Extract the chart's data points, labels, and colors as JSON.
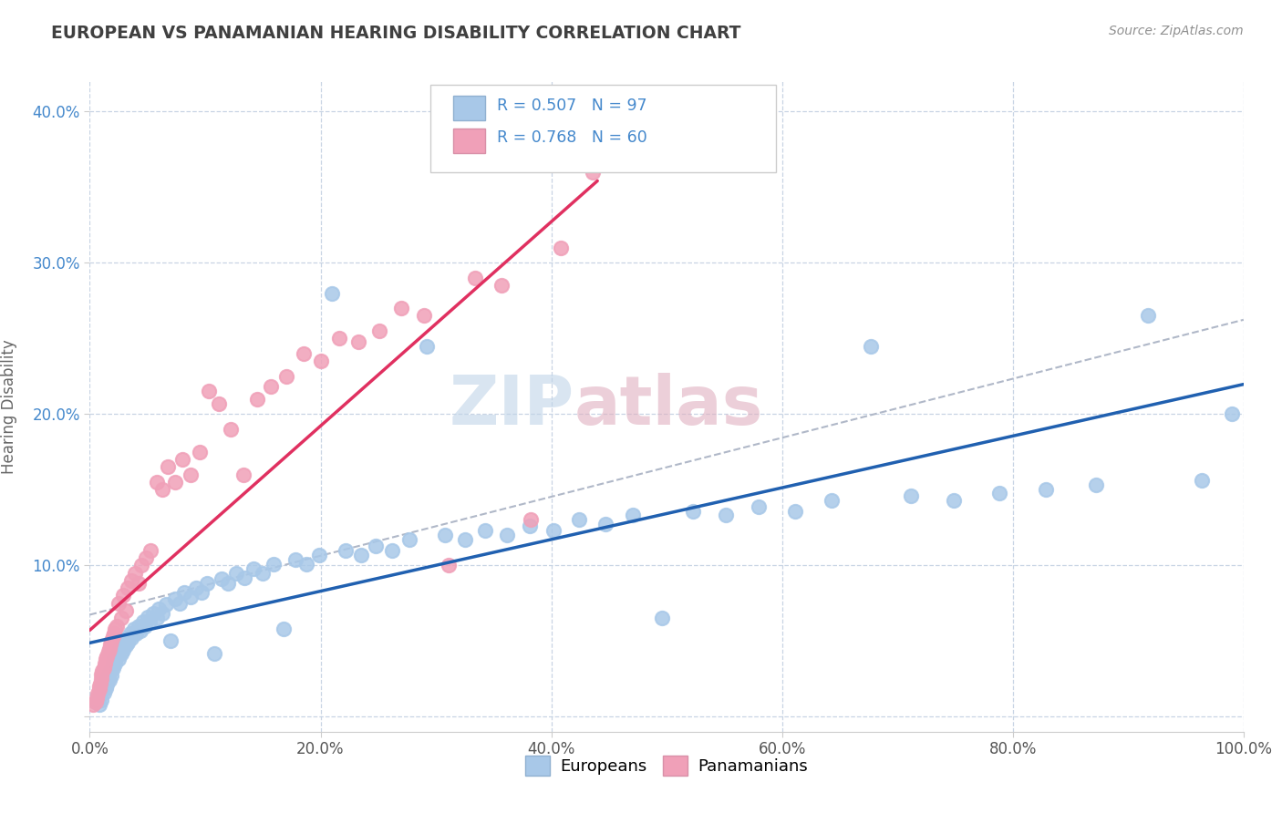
{
  "title": "EUROPEAN VS PANAMANIAN HEARING DISABILITY CORRELATION CHART",
  "source": "Source: ZipAtlas.com",
  "ylabel": "Hearing Disability",
  "watermark_zip": "ZIP",
  "watermark_atlas": "atlas",
  "xlim": [
    0.0,
    1.0
  ],
  "ylim": [
    -0.01,
    0.42
  ],
  "xticks": [
    0.0,
    0.2,
    0.4,
    0.6,
    0.8,
    1.0
  ],
  "xtick_labels": [
    "0.0%",
    "20.0%",
    "40.0%",
    "60.0%",
    "80.0%",
    "100.0%"
  ],
  "yticks": [
    0.0,
    0.1,
    0.2,
    0.3,
    0.4
  ],
  "ytick_labels": [
    "",
    "10.0%",
    "20.0%",
    "30.0%",
    "40.0%"
  ],
  "european_color": "#a8c8e8",
  "panamanian_color": "#f0a0b8",
  "european_line_color": "#2060b0",
  "panamanian_line_color": "#e03060",
  "trendline_dash_color": "#b0b8c8",
  "R_european": 0.507,
  "N_european": 97,
  "R_panamanian": 0.768,
  "N_panamanian": 60,
  "legend_label_european": "Europeans",
  "legend_label_panamanian": "Panamanians",
  "background_color": "#ffffff",
  "grid_color": "#c8d4e4",
  "title_color": "#404040",
  "source_color": "#909090",
  "label_color_blue": "#4488cc",
  "european_x": [
    0.005,
    0.007,
    0.008,
    0.009,
    0.01,
    0.01,
    0.011,
    0.012,
    0.013,
    0.014,
    0.015,
    0.015,
    0.016,
    0.017,
    0.018,
    0.019,
    0.02,
    0.02,
    0.021,
    0.022,
    0.023,
    0.024,
    0.025,
    0.026,
    0.027,
    0.028,
    0.029,
    0.03,
    0.031,
    0.032,
    0.033,
    0.035,
    0.036,
    0.038,
    0.04,
    0.042,
    0.044,
    0.046,
    0.048,
    0.05,
    0.052,
    0.055,
    0.058,
    0.06,
    0.063,
    0.066,
    0.07,
    0.074,
    0.078,
    0.082,
    0.087,
    0.092,
    0.097,
    0.102,
    0.108,
    0.114,
    0.12,
    0.127,
    0.134,
    0.142,
    0.15,
    0.159,
    0.168,
    0.178,
    0.188,
    0.199,
    0.21,
    0.222,
    0.235,
    0.248,
    0.262,
    0.277,
    0.292,
    0.308,
    0.325,
    0.343,
    0.362,
    0.381,
    0.402,
    0.424,
    0.447,
    0.471,
    0.496,
    0.523,
    0.551,
    0.58,
    0.611,
    0.643,
    0.677,
    0.712,
    0.749,
    0.788,
    0.829,
    0.872,
    0.917,
    0.964,
    0.99
  ],
  "european_y": [
    0.01,
    0.012,
    0.008,
    0.015,
    0.018,
    0.011,
    0.02,
    0.016,
    0.022,
    0.019,
    0.025,
    0.021,
    0.028,
    0.024,
    0.03,
    0.027,
    0.035,
    0.032,
    0.038,
    0.035,
    0.04,
    0.042,
    0.038,
    0.045,
    0.042,
    0.048,
    0.044,
    0.05,
    0.047,
    0.052,
    0.049,
    0.055,
    0.052,
    0.058,
    0.055,
    0.06,
    0.057,
    0.063,
    0.06,
    0.066,
    0.063,
    0.068,
    0.065,
    0.071,
    0.068,
    0.074,
    0.05,
    0.078,
    0.075,
    0.082,
    0.079,
    0.085,
    0.082,
    0.088,
    0.042,
    0.091,
    0.088,
    0.095,
    0.092,
    0.098,
    0.095,
    0.101,
    0.058,
    0.104,
    0.101,
    0.107,
    0.28,
    0.11,
    0.107,
    0.113,
    0.11,
    0.117,
    0.245,
    0.12,
    0.117,
    0.123,
    0.12,
    0.126,
    0.123,
    0.13,
    0.127,
    0.133,
    0.065,
    0.136,
    0.133,
    0.139,
    0.136,
    0.143,
    0.245,
    0.146,
    0.143,
    0.148,
    0.15,
    0.153,
    0.265,
    0.156,
    0.2
  ],
  "panamanian_x": [
    0.003,
    0.005,
    0.006,
    0.007,
    0.008,
    0.008,
    0.009,
    0.01,
    0.01,
    0.011,
    0.012,
    0.013,
    0.014,
    0.015,
    0.016,
    0.017,
    0.018,
    0.019,
    0.02,
    0.021,
    0.022,
    0.023,
    0.025,
    0.027,
    0.029,
    0.031,
    0.033,
    0.036,
    0.039,
    0.042,
    0.045,
    0.049,
    0.053,
    0.058,
    0.063,
    0.068,
    0.074,
    0.08,
    0.087,
    0.095,
    0.103,
    0.112,
    0.122,
    0.133,
    0.145,
    0.157,
    0.17,
    0.185,
    0.2,
    0.216,
    0.233,
    0.251,
    0.27,
    0.29,
    0.311,
    0.334,
    0.357,
    0.382,
    0.408,
    0.436
  ],
  "panamanian_y": [
    0.008,
    0.01,
    0.012,
    0.015,
    0.018,
    0.02,
    0.022,
    0.025,
    0.028,
    0.03,
    0.032,
    0.035,
    0.038,
    0.04,
    0.043,
    0.045,
    0.048,
    0.05,
    0.053,
    0.055,
    0.058,
    0.06,
    0.075,
    0.065,
    0.08,
    0.07,
    0.085,
    0.09,
    0.095,
    0.088,
    0.1,
    0.105,
    0.11,
    0.155,
    0.15,
    0.165,
    0.155,
    0.17,
    0.16,
    0.175,
    0.215,
    0.207,
    0.19,
    0.16,
    0.21,
    0.218,
    0.225,
    0.24,
    0.235,
    0.25,
    0.248,
    0.255,
    0.27,
    0.265,
    0.1,
    0.29,
    0.285,
    0.13,
    0.31,
    0.36
  ]
}
